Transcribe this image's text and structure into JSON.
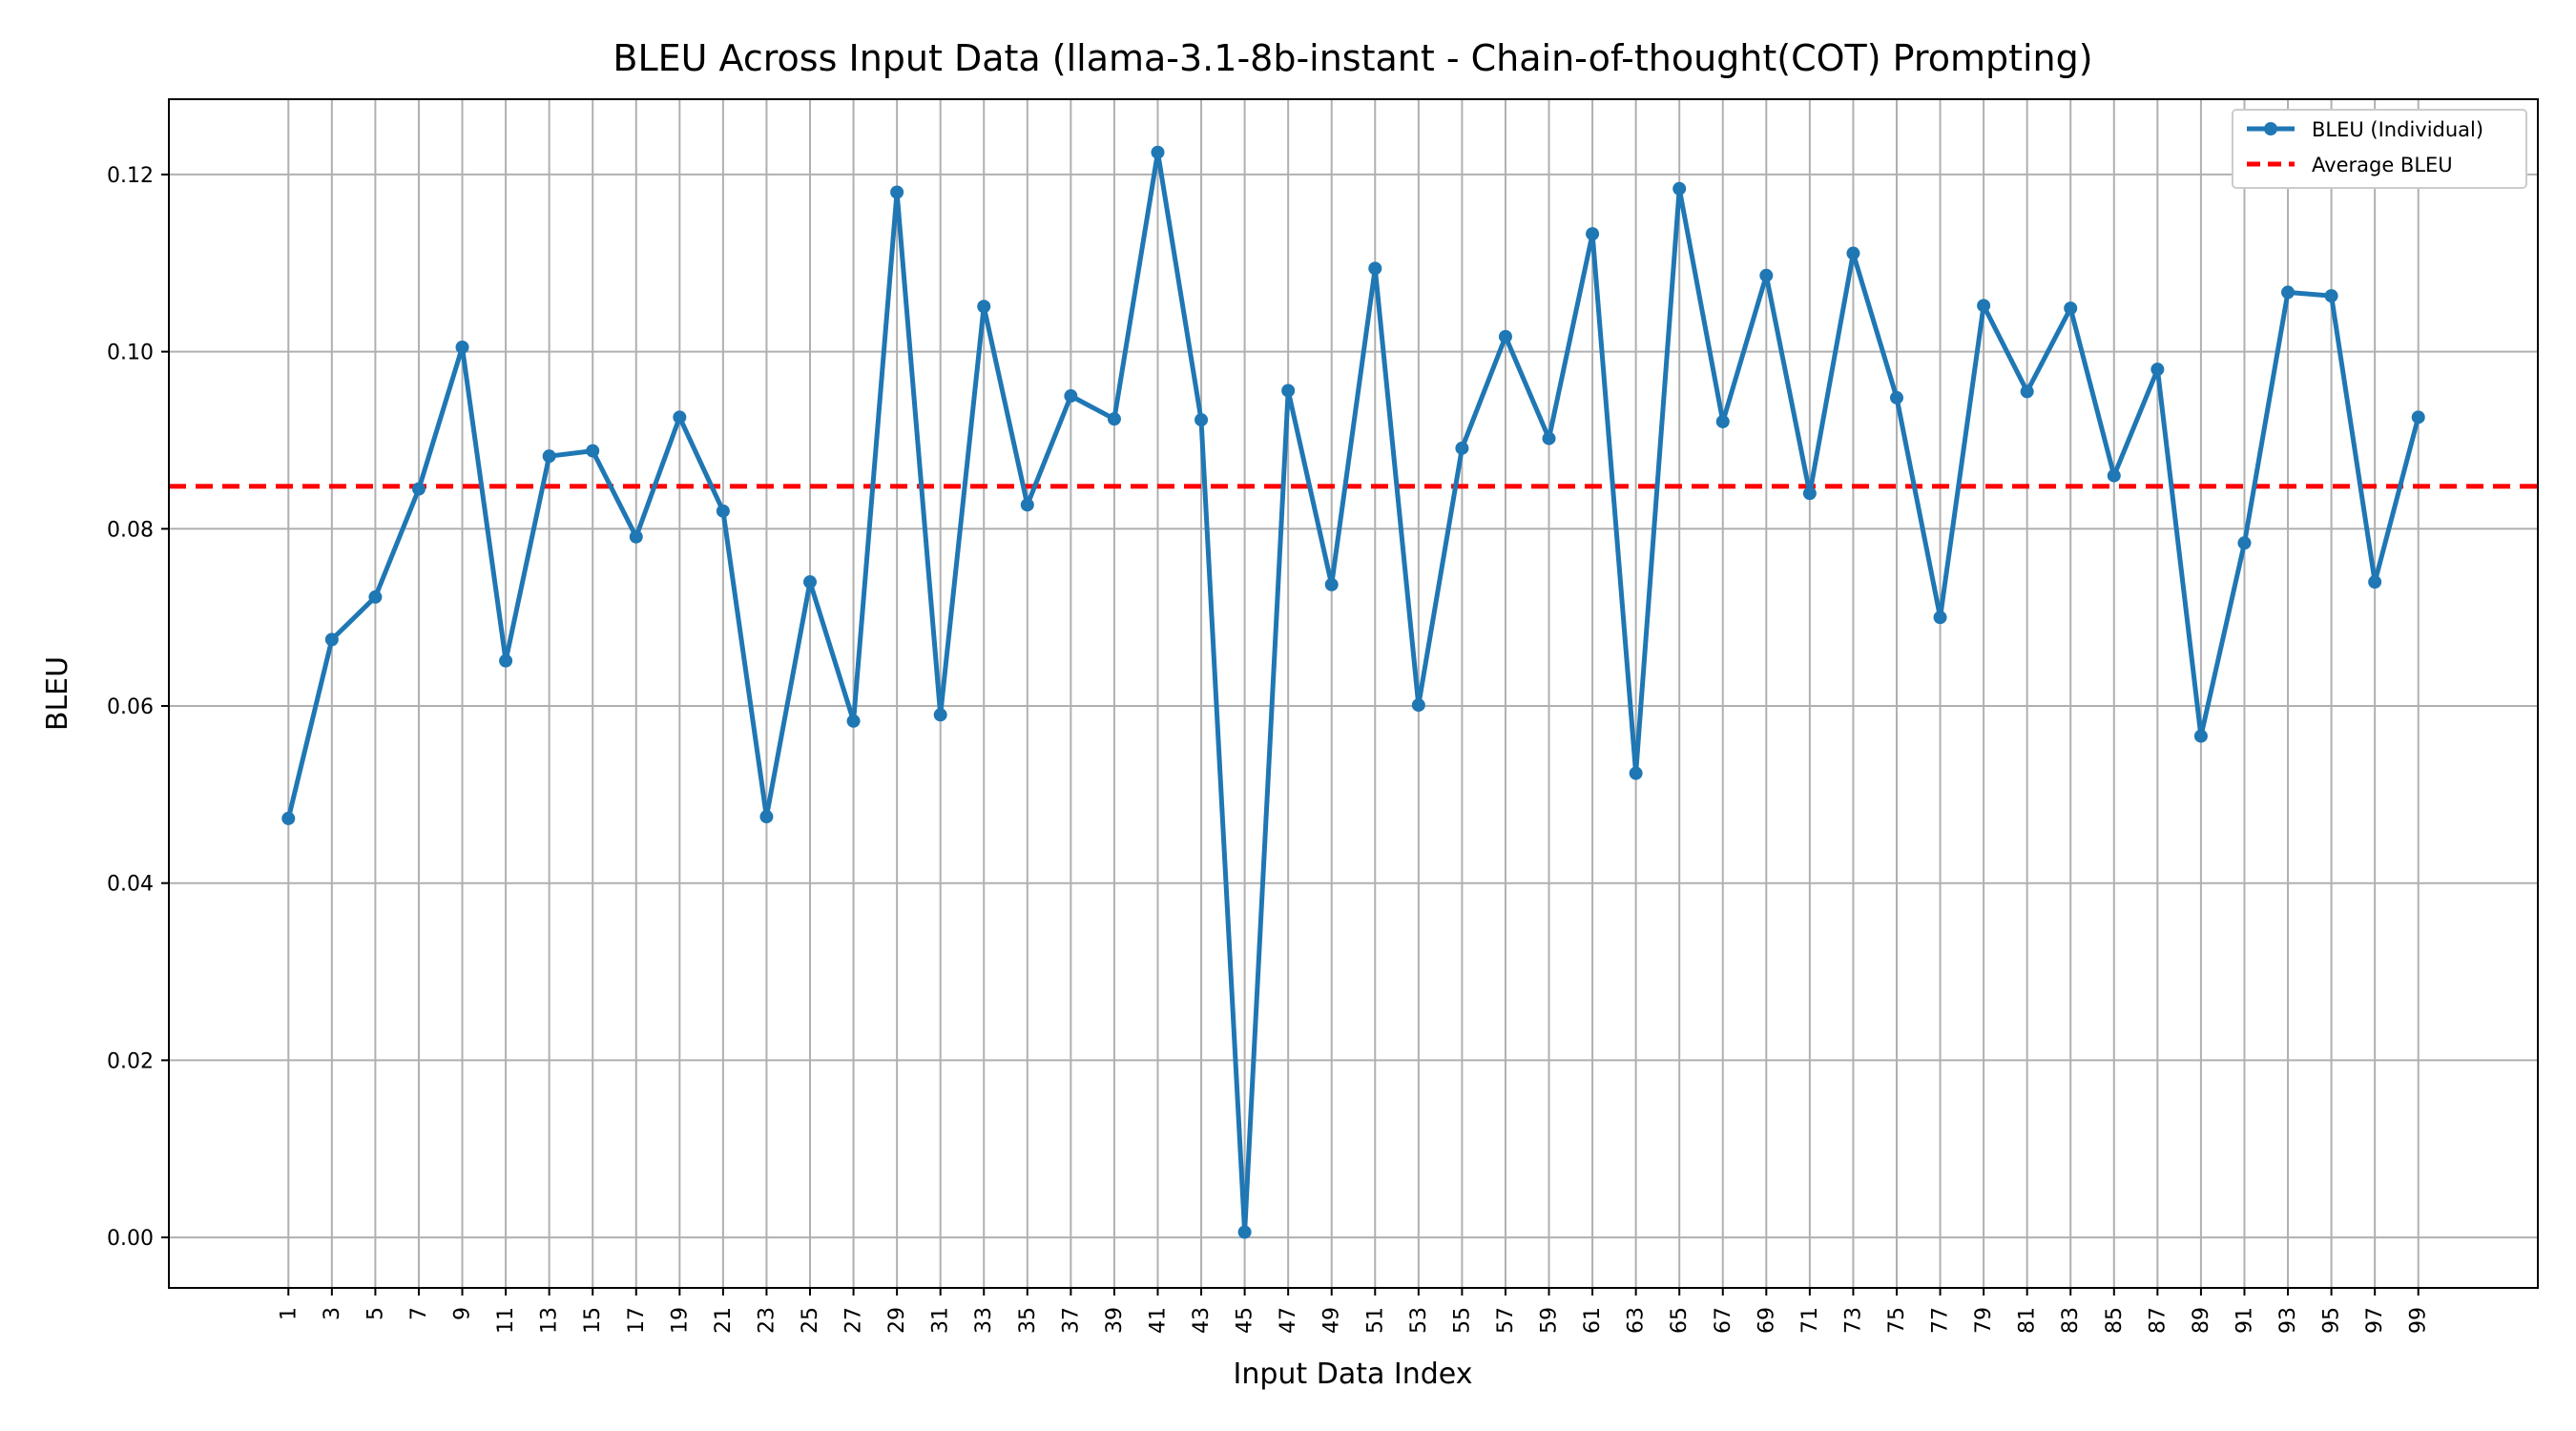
{
  "chart_data": {
    "type": "line",
    "title": "BLEU Across Input Data (llama-3.1-8b-instant - Chain-of-thought(COT) Prompting)",
    "xlabel": "Input Data Index",
    "ylabel": "BLEU",
    "xlim": [
      -4.5,
      104.5
    ],
    "ylim": [
      -0.0057,
      0.1285
    ],
    "yticks": [
      0.0,
      0.02,
      0.04,
      0.06,
      0.08,
      0.1,
      0.12
    ],
    "ytick_labels": [
      "0.00",
      "0.02",
      "0.04",
      "0.06",
      "0.08",
      "0.10",
      "0.12"
    ],
    "xticks": [
      1,
      3,
      5,
      7,
      9,
      11,
      13,
      15,
      17,
      19,
      21,
      23,
      25,
      27,
      29,
      31,
      33,
      35,
      37,
      39,
      41,
      43,
      45,
      47,
      49,
      51,
      53,
      55,
      57,
      59,
      61,
      63,
      65,
      67,
      69,
      71,
      73,
      75,
      77,
      79,
      81,
      83,
      85,
      87,
      89,
      91,
      93,
      95,
      97,
      99
    ],
    "xtick_labels": [
      "1",
      "3",
      "5",
      "7",
      "9",
      "11",
      "13",
      "15",
      "17",
      "19",
      "21",
      "23",
      "25",
      "27",
      "29",
      "31",
      "33",
      "35",
      "37",
      "39",
      "41",
      "43",
      "45",
      "47",
      "49",
      "51",
      "53",
      "55",
      "57",
      "59",
      "61",
      "63",
      "65",
      "67",
      "69",
      "71",
      "73",
      "75",
      "77",
      "79",
      "81",
      "83",
      "85",
      "87",
      "89",
      "91",
      "93",
      "95",
      "97",
      "99"
    ],
    "grid": true,
    "legend_position": "top-right",
    "series": [
      {
        "name": "BLEU (Individual)",
        "color": "#1f77b4",
        "style": "solid-line-with-markers",
        "x": [
          1,
          3,
          5,
          7,
          9,
          11,
          13,
          15,
          17,
          19,
          21,
          23,
          25,
          27,
          29,
          31,
          33,
          35,
          37,
          39,
          41,
          43,
          45,
          47,
          49,
          51,
          53,
          55,
          57,
          59,
          61,
          63,
          65,
          67,
          69,
          71,
          73,
          75,
          77,
          79,
          81,
          83,
          85,
          87,
          89,
          91,
          93,
          95,
          97,
          99
        ],
        "values": [
          0.0473,
          0.0675,
          0.0723,
          0.0845,
          0.1005,
          0.0651,
          0.0882,
          0.0888,
          0.0791,
          0.0926,
          0.082,
          0.0475,
          0.074,
          0.0583,
          0.118,
          0.059,
          0.1051,
          0.0827,
          0.095,
          0.0924,
          0.1225,
          0.0923,
          0.0006,
          0.0956,
          0.0737,
          0.1094,
          0.0601,
          0.0891,
          0.1017,
          0.0902,
          0.1133,
          0.0524,
          0.1184,
          0.0921,
          0.1086,
          0.084,
          0.1111,
          0.0948,
          0.07,
          0.1052,
          0.0955,
          0.1049,
          0.086,
          0.098,
          0.0566,
          0.0784,
          0.1067,
          0.1063,
          0.074,
          0.0926
        ]
      },
      {
        "name": "Average BLEU",
        "color": "#ff0000",
        "style": "dashed-horizontal",
        "value": 0.0848
      }
    ]
  }
}
